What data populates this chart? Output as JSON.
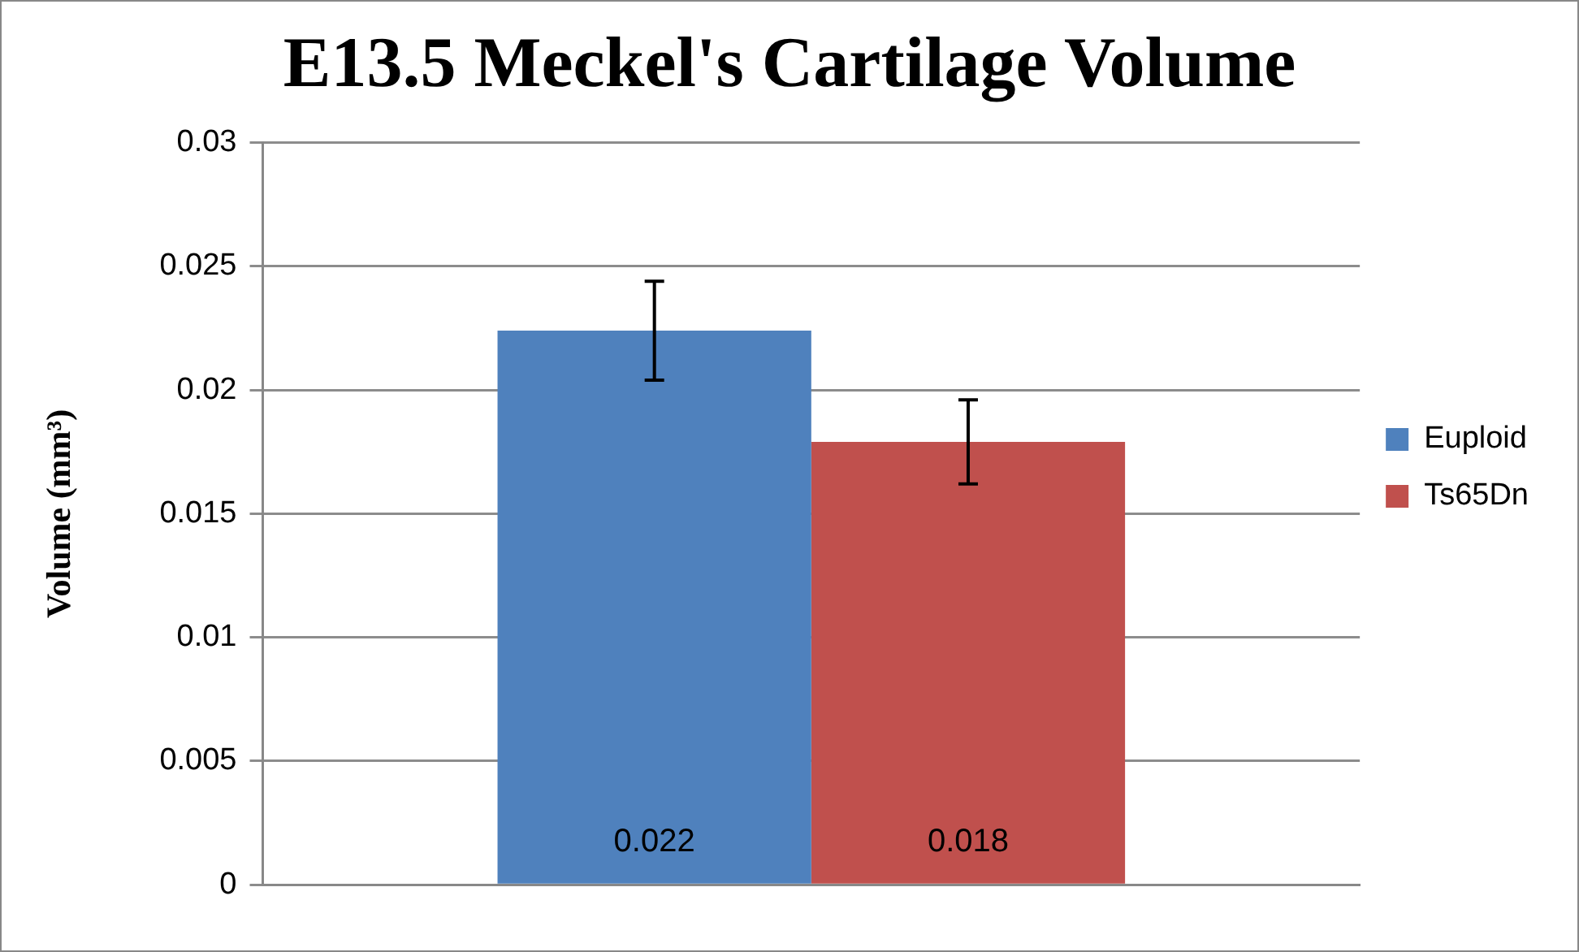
{
  "chart_data": {
    "type": "bar",
    "title": "E13.5 Meckel's Cartilage Volume",
    "ylabel": "Volume (mm³)",
    "categories": [
      null
    ],
    "series": [
      {
        "name": "Euploid",
        "color": "#4f81bd",
        "values": [
          0.0224
        ],
        "errors": [
          0.002
        ],
        "value_labels": [
          "0.022"
        ]
      },
      {
        "name": "Ts65Dn",
        "color": "#c0504d",
        "values": [
          0.0179
        ],
        "errors": [
          0.0017
        ],
        "value_labels": [
          "0.018"
        ]
      }
    ],
    "ylim": [
      0,
      0.03
    ],
    "yticks": [
      0,
      0.005,
      0.01,
      0.015,
      0.02,
      0.025,
      0.03
    ],
    "grid": "y",
    "legend": "right"
  }
}
